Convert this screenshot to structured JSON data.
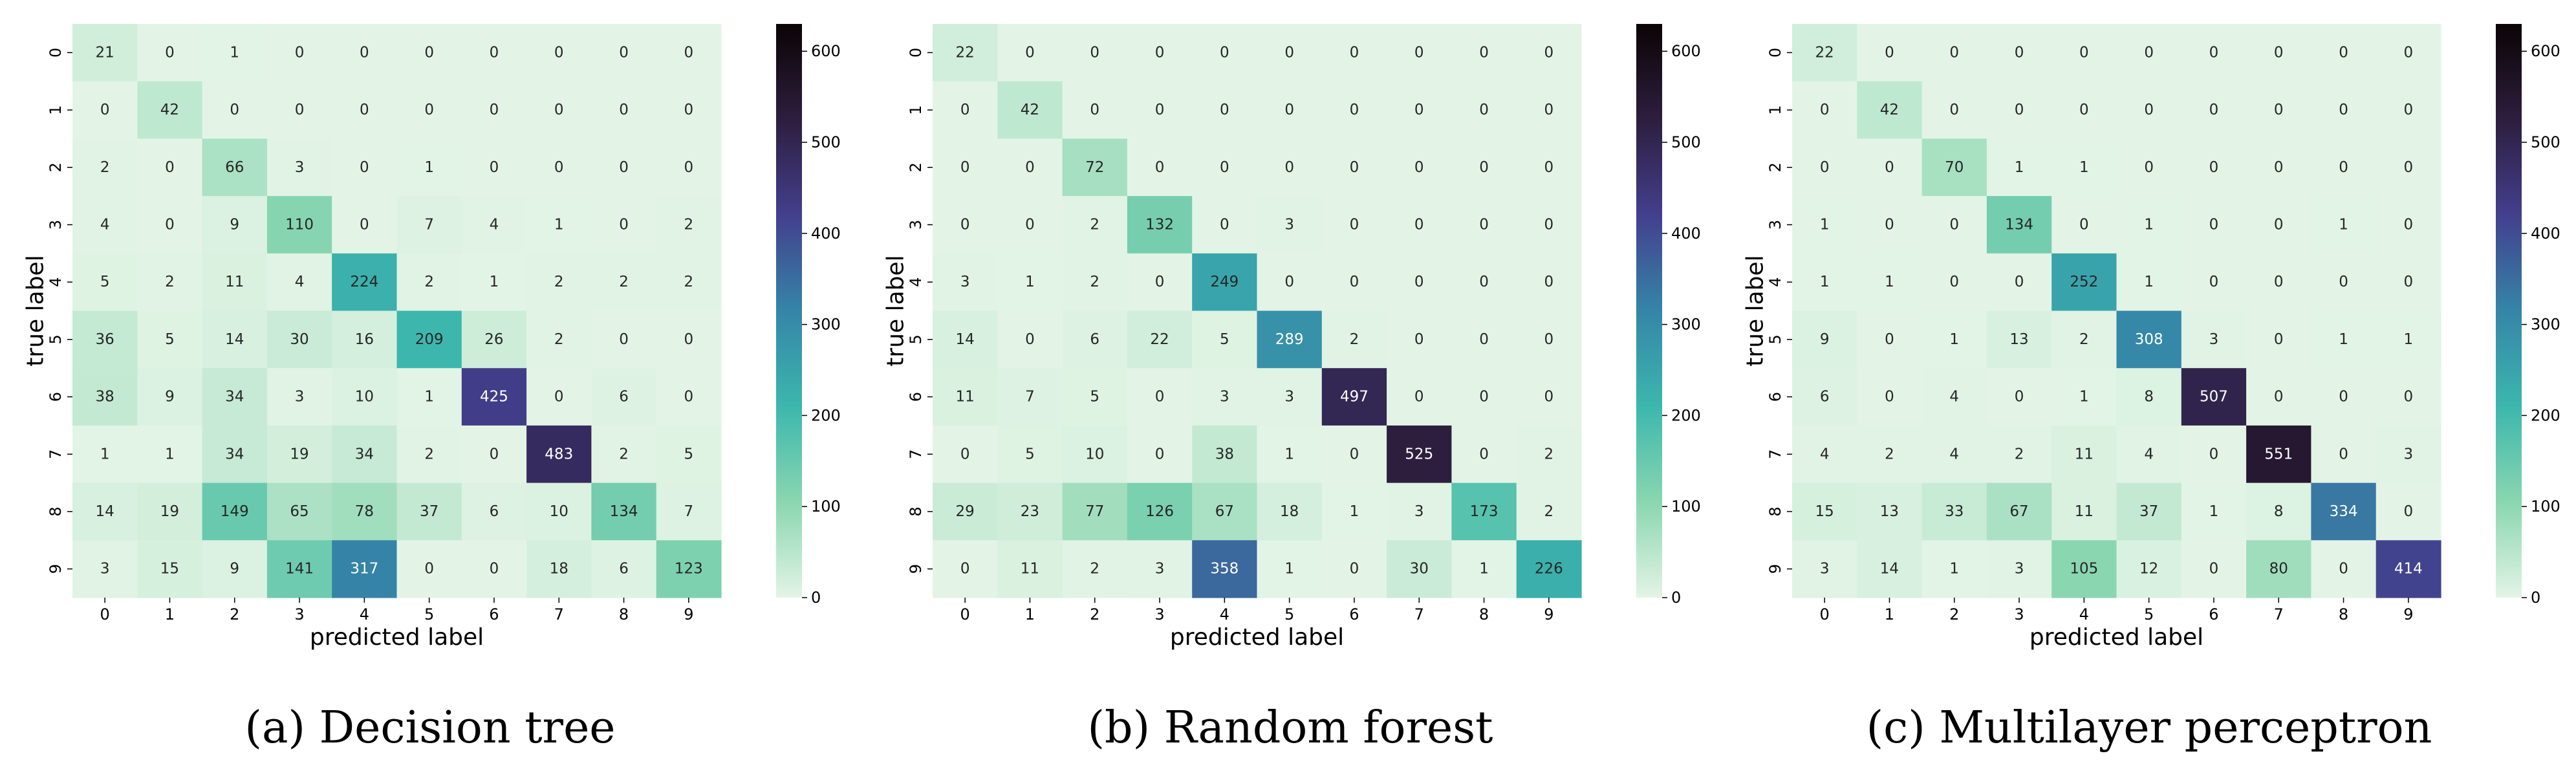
{
  "colorscale": {
    "stops": [
      "#e3f4e6",
      "#8ad6b0",
      "#3cb7ad",
      "#3585a8",
      "#433f8d",
      "#2d1e3e",
      "#0b0405"
    ],
    "min": 0,
    "max": 630,
    "ticks": [
      "0",
      "100",
      "200",
      "300",
      "400",
      "500",
      "600"
    ],
    "tick_values": [
      0,
      100,
      200,
      300,
      400,
      500,
      600
    ]
  },
  "chart_data": [
    {
      "type": "heatmap",
      "caption_letter": "(a)",
      "caption_text": "Decision tree",
      "xlabel": "predicted label",
      "ylabel": "true label",
      "x_ticks": [
        "0",
        "1",
        "2",
        "3",
        "4",
        "5",
        "6",
        "7",
        "8",
        "9"
      ],
      "y_ticks": [
        "0",
        "1",
        "2",
        "3",
        "4",
        "5",
        "6",
        "7",
        "8",
        "9"
      ],
      "matrix": [
        [
          21,
          0,
          1,
          0,
          0,
          0,
          0,
          0,
          0,
          0
        ],
        [
          0,
          42,
          0,
          0,
          0,
          0,
          0,
          0,
          0,
          0
        ],
        [
          2,
          0,
          66,
          3,
          0,
          1,
          0,
          0,
          0,
          0
        ],
        [
          4,
          0,
          9,
          110,
          0,
          7,
          4,
          1,
          0,
          2
        ],
        [
          5,
          2,
          11,
          4,
          224,
          2,
          1,
          2,
          2,
          2
        ],
        [
          36,
          5,
          14,
          30,
          16,
          209,
          26,
          2,
          0,
          0
        ],
        [
          38,
          9,
          34,
          3,
          10,
          1,
          425,
          0,
          6,
          0
        ],
        [
          1,
          1,
          34,
          19,
          34,
          2,
          0,
          483,
          2,
          5
        ],
        [
          14,
          19,
          149,
          65,
          78,
          37,
          6,
          10,
          134,
          7
        ],
        [
          3,
          15,
          9,
          141,
          317,
          0,
          0,
          18,
          6,
          123
        ]
      ]
    },
    {
      "type": "heatmap",
      "caption_letter": "(b)",
      "caption_text": "Random forest",
      "xlabel": "predicted label",
      "ylabel": "true label",
      "x_ticks": [
        "0",
        "1",
        "2",
        "3",
        "4",
        "5",
        "6",
        "7",
        "8",
        "9"
      ],
      "y_ticks": [
        "0",
        "1",
        "2",
        "3",
        "4",
        "5",
        "6",
        "7",
        "8",
        "9"
      ],
      "matrix": [
        [
          22,
          0,
          0,
          0,
          0,
          0,
          0,
          0,
          0,
          0
        ],
        [
          0,
          42,
          0,
          0,
          0,
          0,
          0,
          0,
          0,
          0
        ],
        [
          0,
          0,
          72,
          0,
          0,
          0,
          0,
          0,
          0,
          0
        ],
        [
          0,
          0,
          2,
          132,
          0,
          3,
          0,
          0,
          0,
          0
        ],
        [
          3,
          1,
          2,
          0,
          249,
          0,
          0,
          0,
          0,
          0
        ],
        [
          14,
          0,
          6,
          22,
          5,
          289,
          2,
          0,
          0,
          0
        ],
        [
          11,
          7,
          5,
          0,
          3,
          3,
          497,
          0,
          0,
          0
        ],
        [
          0,
          5,
          10,
          0,
          38,
          1,
          0,
          525,
          0,
          2
        ],
        [
          29,
          23,
          77,
          126,
          67,
          18,
          1,
          3,
          173,
          2
        ],
        [
          0,
          11,
          2,
          3,
          358,
          1,
          0,
          30,
          1,
          226
        ]
      ]
    },
    {
      "type": "heatmap",
      "caption_letter": "(c)",
      "caption_text": "Multilayer perceptron",
      "xlabel": "predicted label",
      "ylabel": "true label",
      "x_ticks": [
        "0",
        "1",
        "2",
        "3",
        "4",
        "5",
        "6",
        "7",
        "8",
        "9"
      ],
      "y_ticks": [
        "0",
        "1",
        "2",
        "3",
        "4",
        "5",
        "6",
        "7",
        "8",
        "9"
      ],
      "matrix": [
        [
          22,
          0,
          0,
          0,
          0,
          0,
          0,
          0,
          0,
          0
        ],
        [
          0,
          42,
          0,
          0,
          0,
          0,
          0,
          0,
          0,
          0
        ],
        [
          0,
          0,
          70,
          1,
          1,
          0,
          0,
          0,
          0,
          0
        ],
        [
          1,
          0,
          0,
          134,
          0,
          1,
          0,
          0,
          1,
          0
        ],
        [
          1,
          1,
          0,
          0,
          252,
          1,
          0,
          0,
          0,
          0
        ],
        [
          9,
          0,
          1,
          13,
          2,
          308,
          3,
          0,
          1,
          1
        ],
        [
          6,
          0,
          4,
          0,
          1,
          8,
          507,
          0,
          0,
          0
        ],
        [
          4,
          2,
          4,
          2,
          11,
          4,
          0,
          551,
          0,
          3
        ],
        [
          15,
          13,
          33,
          67,
          11,
          37,
          1,
          8,
          334,
          0
        ],
        [
          3,
          14,
          1,
          3,
          105,
          12,
          0,
          80,
          0,
          414
        ]
      ]
    }
  ]
}
